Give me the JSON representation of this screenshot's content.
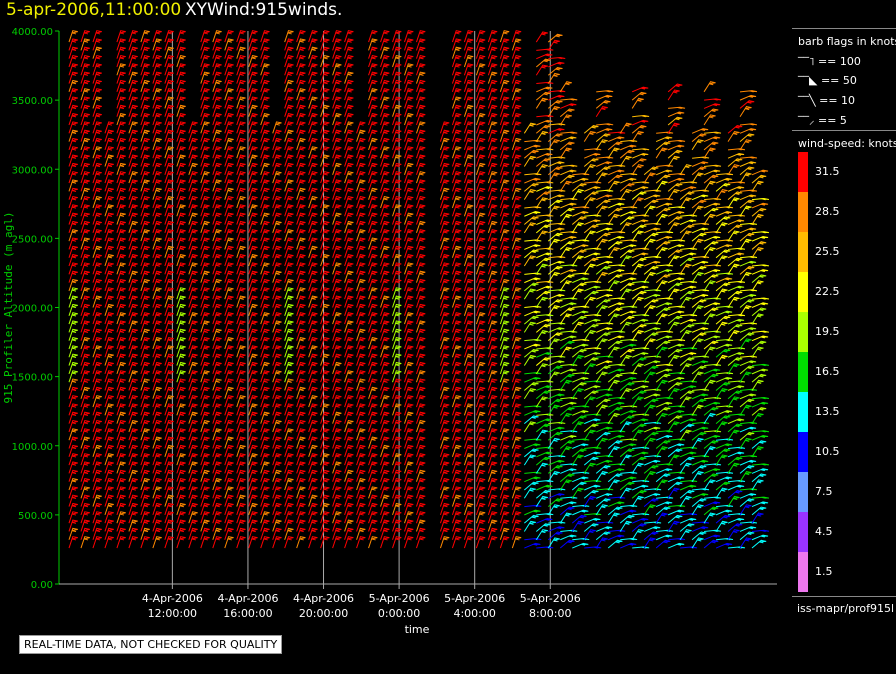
{
  "header": {
    "date": "5-apr-2006,11:00:00",
    "title": "XYWind:915winds."
  },
  "legend": {
    "flag_title": "barb flags in knots",
    "flags": [
      {
        "label": "== 100",
        "knots": 100
      },
      {
        "label": "== 50",
        "knots": 50
      },
      {
        "label": "== 10",
        "knots": 10
      },
      {
        "label": "== 5",
        "knots": 5
      }
    ],
    "speed_title": "wind-speed: knots",
    "speeds": [
      {
        "label": "31.5",
        "color": "#ff0000"
      },
      {
        "label": "28.5",
        "color": "#ff8800"
      },
      {
        "label": "25.5",
        "color": "#ffbb00"
      },
      {
        "label": "22.5",
        "color": "#ffff00"
      },
      {
        "label": "19.5",
        "color": "#aaff00"
      },
      {
        "label": "16.5",
        "color": "#00dd00"
      },
      {
        "label": "13.5",
        "color": "#00ffff"
      },
      {
        "label": "10.5",
        "color": "#0000ff"
      },
      {
        "label": "7.5",
        "color": "#6699ff"
      },
      {
        "label": "4.5",
        "color": "#9933ff"
      },
      {
        "label": "1.5",
        "color": "#ee77ee"
      }
    ],
    "source": "iss-mapr/prof915l"
  },
  "quality_note": "REAL-TIME DATA, NOT CHECKED FOR QUALITY",
  "colors": {
    "axis": "#00cc00",
    "ytick": "#00cc00",
    "grid": "#aaaaaa"
  },
  "chart_data": {
    "type": "wind-barb time-height",
    "ylabel": "915 Profiler Altitude (m agl)",
    "xlabel": "time",
    "ylim": [
      0,
      4000
    ],
    "yticks": [
      "0.00",
      "500.00",
      "1000.00",
      "1500.00",
      "2000.00",
      "2500.00",
      "3000.00",
      "3500.00",
      "4000.00"
    ],
    "x_hours_range": [
      9.5,
      19.0
    ],
    "xticks": [
      {
        "hour": 11,
        "line1": "4-Apr-2006",
        "line2": "12:00:00"
      },
      {
        "hour": 12,
        "line1": "4-Apr-2006",
        "line2": "16:00:00"
      },
      {
        "hour": 13,
        "line1": "4-Apr-2006",
        "line2": "20:00:00"
      },
      {
        "hour": 14,
        "line1": "5-Apr-2006",
        "line2": "0:00:00"
      },
      {
        "hour": 15,
        "line1": "5-Apr-2006",
        "line2": "4:00:00"
      },
      {
        "hour": 16,
        "line1": "5-Apr-2006",
        "line2": "8:00:00"
      }
    ],
    "profiles": {
      "count": 58,
      "gap_after_profile": 30,
      "altitude_start_m": 260,
      "altitude_step_m": 60,
      "top_speed_knots": 35,
      "low_speed_knots": 8
    }
  }
}
